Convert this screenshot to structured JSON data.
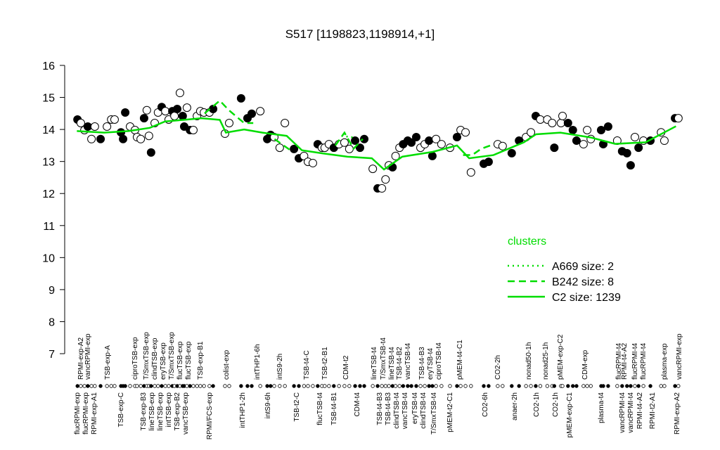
{
  "chart_data": {
    "type": "scatter",
    "title": "S517 [1198823,1198914,+1]",
    "xlim": [
      0,
      200
    ],
    "ylim": [
      7,
      16
    ],
    "yticks": [
      7,
      8,
      9,
      10,
      11,
      12,
      13,
      14,
      15,
      16
    ],
    "points": {
      "x": [
        1.2,
        2.3,
        3.5,
        4.6,
        5.8,
        6.9,
        8.8,
        10.9,
        12.3,
        13.4,
        15.5,
        16.2,
        16.9,
        18.5,
        20.1,
        20.8,
        22.0,
        23.1,
        24.0,
        24.7,
        25.4,
        26.6,
        27.7,
        28.9,
        30.1,
        31.2,
        32.4,
        33.1,
        34.0,
        34.9,
        35.8,
        36.3,
        37.2,
        38.2,
        39.3,
        40.5,
        41.6,
        42.8,
        44.6,
        45.8,
        49.7,
        51.1,
        55.0,
        57.1,
        58.5,
        61.3,
        63.6,
        64.7,
        65.9,
        67.7,
        69.4,
        72.4,
        74.0,
        75.7,
        77.0,
        78.6,
        80.2,
        81.6,
        82.5,
        83.9,
        85.5,
        87.2,
        89.0,
        90.6,
        92.5,
        94.1,
        95.5,
        98.3,
        99.9,
        101.3,
        102.5,
        103.6,
        104.8,
        105.8,
        107.1,
        108.3,
        109.8,
        111.0,
        112.6,
        114.0,
        115.4,
        116.8,
        117.9,
        119.1,
        120.9,
        123.7,
        126.0,
        127.2,
        128.8,
        130.6,
        134.8,
        136.4,
        139.4,
        141.0,
        144.0,
        146.4,
        148.7,
        150.3,
        151.9,
        153.4,
        155.7,
        157.3,
        158.0,
        160.2,
        160.7,
        162.5,
        164.1,
        165.3,
        167.6,
        168.8,
        170.0,
        173.4,
        174.1,
        175.7,
        178.7,
        180.3,
        181.9,
        183.1,
        184.5,
        185.7,
        187.3,
        189.6,
        193.1,
        194.2,
        197.7,
        198.8
      ],
      "values": [
        14.31,
        14.2,
        13.98,
        14.09,
        13.7,
        14.09,
        13.7,
        14.09,
        14.31,
        14.31,
        13.91,
        13.7,
        14.53,
        14.09,
        13.98,
        13.76,
        13.7,
        14.35,
        14.6,
        13.8,
        13.28,
        14.2,
        14.53,
        14.7,
        14.57,
        14.31,
        14.57,
        14.42,
        14.64,
        15.14,
        14.42,
        14.09,
        14.68,
        13.98,
        13.98,
        14.42,
        14.57,
        14.53,
        14.53,
        14.64,
        13.87,
        14.2,
        14.97,
        14.35,
        14.49,
        14.57,
        13.7,
        13.83,
        13.76,
        13.43,
        14.2,
        13.39,
        13.1,
        13.17,
        12.99,
        12.95,
        13.54,
        13.43,
        13.43,
        13.54,
        13.43,
        13.54,
        13.59,
        13.39,
        13.65,
        13.43,
        13.7,
        12.77,
        12.16,
        12.16,
        12.44,
        12.88,
        12.82,
        13.17,
        13.43,
        13.54,
        13.65,
        13.59,
        13.76,
        13.43,
        13.54,
        13.65,
        13.17,
        13.7,
        13.54,
        13.43,
        13.76,
        13.98,
        13.91,
        12.66,
        12.93,
        12.99,
        13.54,
        13.48,
        13.26,
        13.65,
        13.76,
        13.91,
        14.42,
        14.31,
        14.31,
        14.2,
        13.43,
        14.2,
        14.42,
        14.2,
        13.98,
        13.65,
        13.54,
        13.98,
        13.7,
        13.98,
        13.54,
        14.09,
        13.65,
        13.32,
        13.26,
        12.88,
        13.76,
        13.43,
        13.65,
        13.65,
        13.91,
        13.65,
        14.35,
        14.35
      ],
      "filled": [
        true,
        false,
        false,
        true,
        false,
        false,
        true,
        false,
        false,
        false,
        true,
        true,
        true,
        false,
        false,
        false,
        false,
        true,
        false,
        false,
        true,
        false,
        false,
        true,
        false,
        false,
        true,
        false,
        true,
        false,
        true,
        true,
        false,
        true,
        false,
        false,
        false,
        false,
        false,
        true,
        false,
        false,
        true,
        true,
        true,
        false,
        true,
        true,
        false,
        false,
        false,
        true,
        true,
        false,
        false,
        false,
        true,
        false,
        false,
        false,
        true,
        false,
        false,
        false,
        true,
        true,
        true,
        false,
        true,
        false,
        false,
        false,
        true,
        false,
        false,
        true,
        true,
        true,
        true,
        false,
        false,
        true,
        true,
        false,
        false,
        false,
        true,
        false,
        false,
        false,
        true,
        true,
        false,
        false,
        true,
        true,
        false,
        false,
        true,
        false,
        false,
        false,
        true,
        false,
        false,
        true,
        true,
        true,
        false,
        false,
        false,
        true,
        true,
        true,
        false,
        true,
        true,
        true,
        false,
        true,
        false,
        true,
        false,
        false,
        true,
        false
      ]
    },
    "series": [
      {
        "name": "A669 size: 2",
        "style": "dotted",
        "color": "#00dd00",
        "x": [
          88,
          92
        ],
        "values": [
          13.8,
          13.75
        ]
      },
      {
        "name": "B242 size: 8",
        "style": "dashed",
        "color": "#00dd00",
        "x": [
          43,
          48,
          51,
          56,
          59,
          null,
          66,
          69,
          72,
          null,
          86,
          89,
          92,
          95,
          null,
          128,
          131,
          134,
          137
        ],
        "values": [
          14.5,
          14.9,
          14.6,
          14.2,
          14.2,
          null,
          13.7,
          13.5,
          13.3,
          null,
          13.5,
          13.9,
          13.4,
          13.7,
          null,
          13.2,
          13.2,
          13.4,
          13.5
        ]
      },
      {
        "name": "C2 size: 1239",
        "style": "solid",
        "color": "#00dd00",
        "x": [
          1,
          10,
          18,
          25,
          30,
          36,
          42,
          48,
          50,
          56,
          62,
          70,
          75,
          82,
          90,
          98,
          102,
          108,
          118,
          126,
          130,
          138,
          148,
          152,
          160,
          170,
          178,
          188,
          198
        ],
        "values": [
          13.95,
          13.9,
          13.95,
          14.05,
          14.25,
          14.3,
          14.35,
          14.3,
          13.9,
          14.0,
          13.9,
          13.8,
          13.35,
          13.25,
          13.15,
          13.1,
          12.75,
          13.15,
          13.3,
          13.5,
          13.1,
          13.2,
          13.6,
          13.85,
          13.9,
          13.75,
          13.55,
          13.6,
          14.1
        ]
      }
    ],
    "legend_title": "clusters",
    "top_labels": {
      "x": [
        2.3,
        4.6,
        11.1,
        20.1,
        23.8,
        26.6,
        29.4,
        32.1,
        34.9,
        37.7,
        41.6,
        50.2,
        60.3,
        67.7,
        76.5,
        82.5,
        89.5,
        98.7,
        101.7,
        104.5,
        107.1,
        109.8,
        114.5,
        117.2,
        120.0,
        126.9,
        139.4,
        149.6,
        155.1,
        160.0,
        168.1,
        179.2,
        181.0,
        184.5,
        187.3,
        194.2,
        199.1
      ],
      "labels": [
        "RPMI-exp-A2",
        "vancRPMI-exp",
        "TSB-exp-A",
        "ciproTSB-exp",
        "T/SmxTSB-exp",
        "clindTSB-exp",
        "eryTSB-exp",
        "T/SmxTSB-exp",
        "flucTSB-exp",
        "flucTSB-exp",
        "TSB-exp-B1",
        "colist-exp",
        "intTHP1-6h",
        "intS9-2h",
        "TSB-t4-C",
        "TSB-t2-B1",
        "CDM-t2",
        "lineTSB-t4",
        "T/SmxTSB-t4",
        "lineTSB-t4",
        "TSB-t4-B2",
        "vancTSB-t4",
        "TSB-t4-B3",
        "eryTSB-t4",
        "ciproTSB-t4",
        "pMEM-t4-C1",
        "CO2-2h",
        "nonad50-1h",
        "nonad25-1h",
        "pMEM-exp-C2",
        "CDM-exp",
        "flucRPMI-t4",
        "RPMI-t4-A2",
        "flucRPMI-t4",
        "flucRPMI-t4",
        "plasma-exp",
        "vancRPMI-exp"
      ]
    },
    "bottom_labels": {
      "x": [
        1.2,
        3.9,
        6.7,
        15.5,
        22.9,
        25.7,
        28.4,
        31.2,
        34.0,
        36.8,
        44.6,
        55.5,
        63.8,
        73.3,
        80.9,
        85.5,
        93.2,
        100.6,
        103.4,
        106.1,
        108.9,
        112.1,
        114.9,
        118.4,
        123.7,
        135.3,
        145.0,
        152.1,
        158.4,
        163.0,
        173.4,
        180.3,
        183.1,
        186.1,
        190.3,
        198.4
      ],
      "labels": [
        "flucRPMI-exp",
        "flucRPMI-exp",
        "RPMI-exp-A1",
        "TSB-exp-C",
        "TSB-exp-B3",
        "lineTSB-exp",
        "lineTSB-exp",
        "intTSB-exp",
        "TSB-exp-B2",
        "vancTSB-exp",
        "RPMI/FCS-exp",
        "intTHP1-2h",
        "intS9-6h",
        "TSB-t2-C",
        "flucTSB-t4",
        "TSB-t4-B1",
        "CDM-t4",
        "TSB-t4-B3",
        "TSB-t4-B3",
        "clindTSB-t4",
        "vancTSB-t4",
        "eryTSB-t4",
        "clindTSB-t4",
        "T/SmxTSB-t4",
        "pMEM-t2-C1",
        "CO2-6h",
        "anaer-2h",
        "CO2-1h",
        "CO2-1h",
        "pMEM-exp-C1",
        "plasma-t4",
        "vancRPMI-t4",
        "vancRPMI-t4",
        "RPMI-t4-A2",
        "RPMI-t2-A1",
        "RPMI-exp-A2"
      ]
    }
  }
}
